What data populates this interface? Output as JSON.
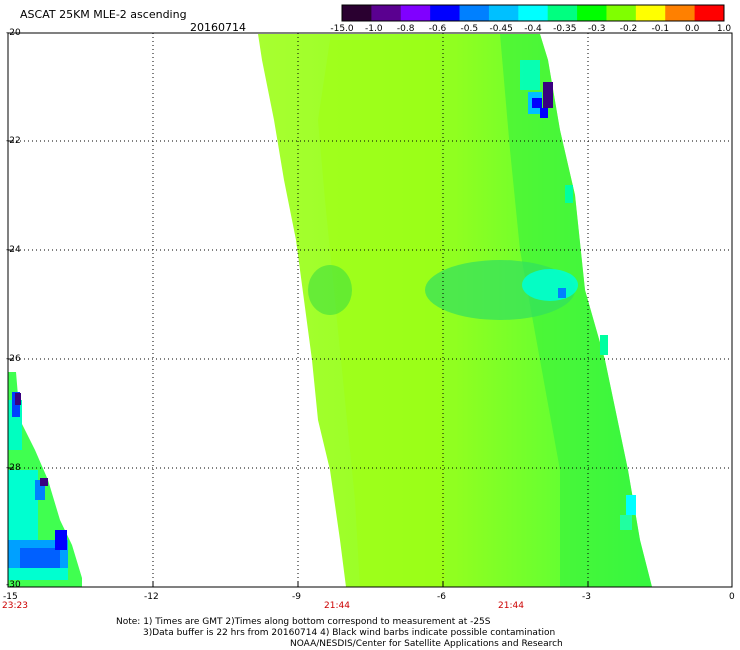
{
  "header": {
    "title": "ASCAT 25KM MLE-2 ascending",
    "date": "20160714"
  },
  "colorbar": {
    "labels": [
      "-15.0",
      "-1.0",
      "-0.8",
      "-0.6",
      "-0.5",
      "-0.45",
      "-0.4",
      "-0.35",
      "-0.3",
      "-0.2",
      "-0.1",
      "0.0",
      "1.0"
    ],
    "colors": [
      "#2a0030",
      "#5a0090",
      "#8000ff",
      "#0000ff",
      "#0080ff",
      "#00c0ff",
      "#00ffff",
      "#00ff80",
      "#00ff00",
      "#80ff00",
      "#ffff00",
      "#ff8000",
      "#ff0000"
    ]
  },
  "axes": {
    "y_labels": [
      "-20",
      "-22",
      "-24",
      "-26",
      "-28",
      "-30"
    ],
    "x_labels": [
      "-15",
      "-12",
      "-9",
      "-6",
      "-3",
      "0"
    ],
    "time_labels": [
      "23:23",
      "21:44",
      "21:44"
    ]
  },
  "notes": {
    "line1": "Note: 1) Times are GMT 2)Times along bottom correspond to measurement at -25S",
    "line2": "3)Data buffer is 22 hrs from 20160714 4) Black wind barbs indicate possible contamination",
    "line3": "NOAA/NESDIS/Center for Satellite Applications and Research"
  }
}
